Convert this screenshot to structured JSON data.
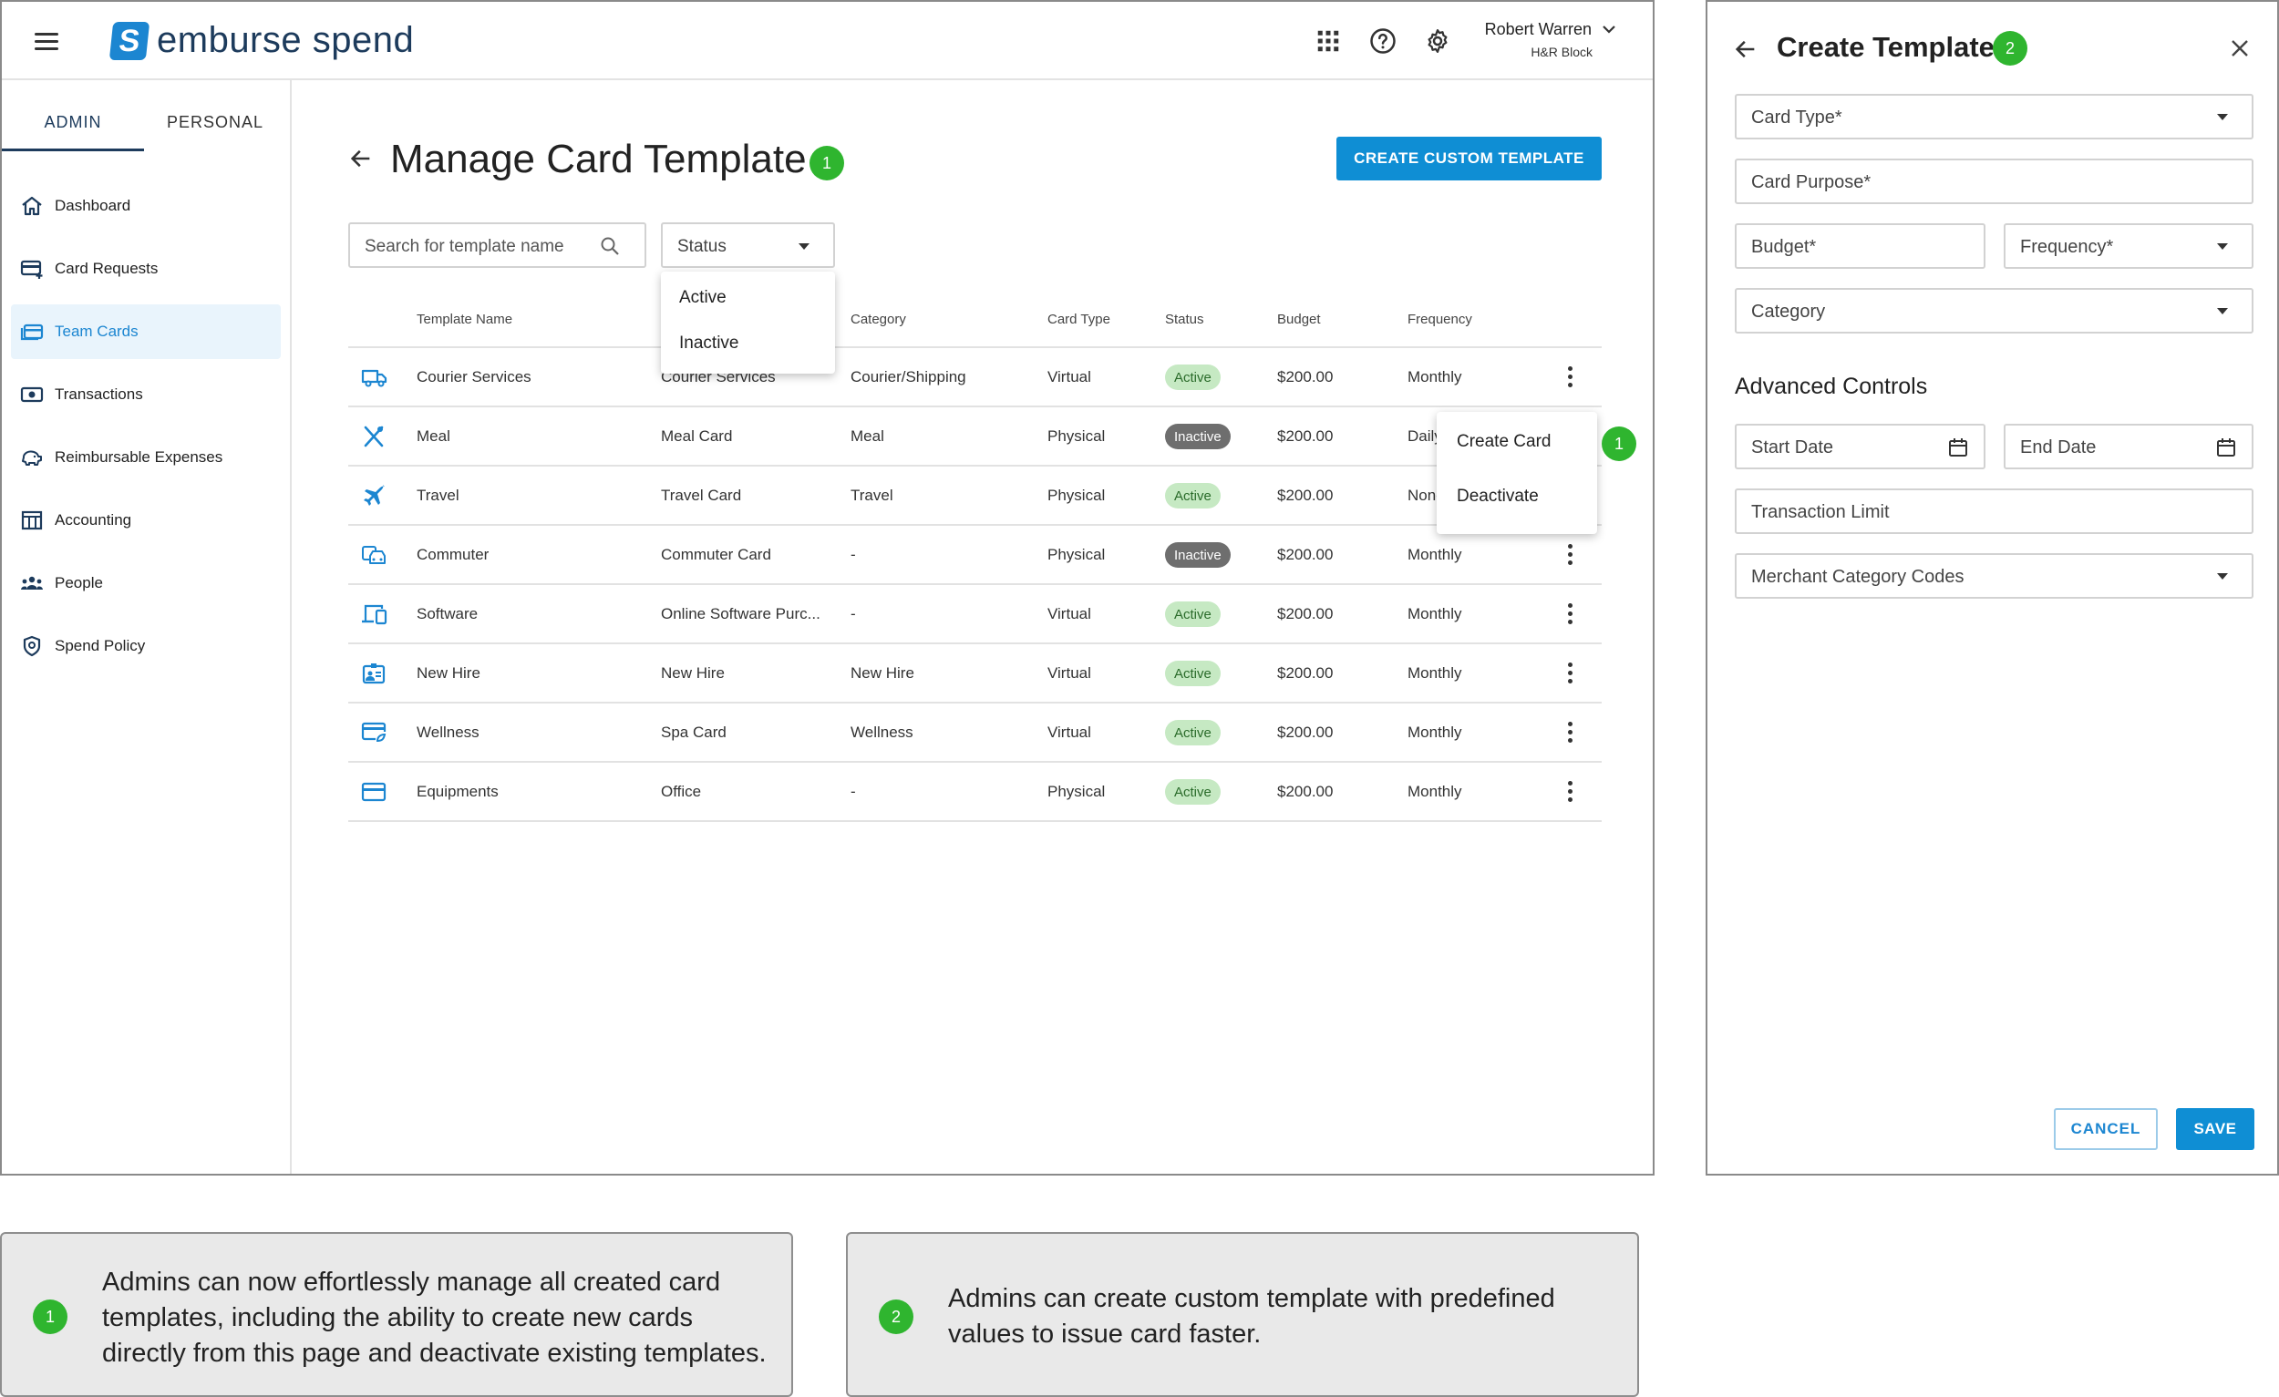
{
  "app": {
    "brand": "emburse spend",
    "brand_mark": "S",
    "user_name": "Robert Warren",
    "user_org": "H&R Block"
  },
  "sidebar": {
    "tabs": [
      {
        "label": "ADMIN"
      },
      {
        "label": "PERSONAL"
      }
    ],
    "items": [
      {
        "label": "Dashboard",
        "icon": "home-icon"
      },
      {
        "label": "Card Requests",
        "icon": "card-add-icon"
      },
      {
        "label": "Team Cards",
        "icon": "cards-icon"
      },
      {
        "label": "Transactions",
        "icon": "money-icon"
      },
      {
        "label": "Reimbursable Expenses",
        "icon": "piggy-bank-icon"
      },
      {
        "label": "Accounting",
        "icon": "ledger-icon"
      },
      {
        "label": "People",
        "icon": "people-icon"
      },
      {
        "label": "Spend Policy",
        "icon": "shield-icon"
      }
    ]
  },
  "main": {
    "title": "Manage Card Template",
    "title_badge": "1",
    "create_button": "CREATE CUSTOM TEMPLATE",
    "search_placeholder": "Search for template name",
    "status_filter": "Status",
    "status_options": [
      "Active",
      "Inactive"
    ],
    "columns": {
      "template_name": "Template Name",
      "category": "Category",
      "card_type": "Card Type",
      "status": "Status",
      "budget": "Budget",
      "frequency": "Frequency"
    },
    "rows": [
      {
        "name": "Courier Services",
        "purpose": "Courier Services",
        "category": "Courier/Shipping",
        "card_type": "Virtual",
        "status": "Active",
        "budget": "$200.00",
        "frequency": "Monthly",
        "icon": "truck-icon"
      },
      {
        "name": "Meal",
        "purpose": "Meal Card",
        "category": "Meal",
        "card_type": "Physical",
        "status": "Inactive",
        "budget": "$200.00",
        "frequency": "Daily",
        "icon": "utensils-icon"
      },
      {
        "name": "Travel",
        "purpose": "Travel Card",
        "category": "Travel",
        "card_type": "Physical",
        "status": "Active",
        "budget": "$200.00",
        "frequency": "None",
        "icon": "airplane-icon"
      },
      {
        "name": "Commuter",
        "purpose": "Commuter Card",
        "category": "-",
        "card_type": "Physical",
        "status": "Inactive",
        "budget": "$200.00",
        "frequency": "Monthly",
        "icon": "car-icon"
      },
      {
        "name": "Software",
        "purpose": "Online Software Purc...",
        "category": "-",
        "card_type": "Virtual",
        "status": "Active",
        "budget": "$200.00",
        "frequency": "Monthly",
        "icon": "devices-icon"
      },
      {
        "name": "New Hire",
        "purpose": "New Hire",
        "category": "New Hire",
        "card_type": "Virtual",
        "status": "Active",
        "budget": "$200.00",
        "frequency": "Monthly",
        "icon": "id-badge-icon"
      },
      {
        "name": "Wellness",
        "purpose": "Spa Card",
        "category": "Wellness",
        "card_type": "Virtual",
        "status": "Active",
        "budget": "$200.00",
        "frequency": "Monthly",
        "icon": "wellness-card-icon"
      },
      {
        "name": "Equipments",
        "purpose": "Office",
        "category": "-",
        "card_type": "Physical",
        "status": "Active",
        "budget": "$200.00",
        "frequency": "Monthly",
        "icon": "credit-card-icon"
      }
    ],
    "row_menu": {
      "items": [
        "Create Card",
        "Deactivate"
      ],
      "badge": "1"
    }
  },
  "panel": {
    "title": "Create Template",
    "title_badge": "2",
    "fields": {
      "card_type": "Card Type*",
      "card_purpose": "Card Purpose*",
      "budget": "Budget*",
      "frequency": "Frequency*",
      "category": "Category"
    },
    "advanced_title": "Advanced Controls",
    "advanced": {
      "start_date": "Start Date",
      "end_date": "End Date",
      "transaction_limit": "Transaction Limit",
      "mcc": "Merchant Category Codes"
    },
    "cancel": "CANCEL",
    "save": "SAVE"
  },
  "notes": [
    {
      "badge": "1",
      "text": "Admins can now effortlessly manage all created card templates, including the ability to create new cards directly from this page and deactivate existing templates."
    },
    {
      "badge": "2",
      "text": "Admins can create custom template with predefined values to issue card faster."
    }
  ],
  "colors": {
    "accent": "#0f8ed4",
    "brand_navy": "#1d3b5c",
    "badge_green": "#2fb52f",
    "active_pill": "#c6e9c3",
    "inactive_pill": "#6e6e6e",
    "nav_active_bg": "#e9f4fc"
  }
}
